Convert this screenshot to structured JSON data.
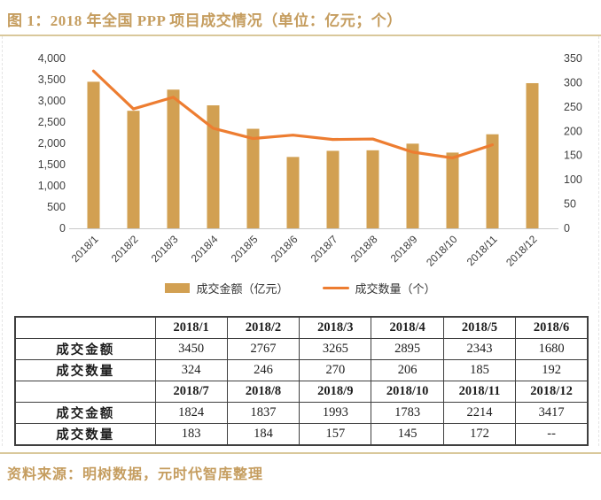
{
  "title": "图 1：2018 年全国 PPP 项目成交情况（单位：亿元；个）",
  "source": "资料来源：明树数据，元时代智库整理",
  "colors": {
    "bar": "#d2a052",
    "line": "#ed7d31",
    "gold_text": "#c59d5f",
    "gold_rule": "#d9c89b",
    "axis_text": "#3f3f3f"
  },
  "chart_data": {
    "type": "bar",
    "subtype": "combo-bar-line-dual-axis",
    "categories": [
      "2018/1",
      "2018/2",
      "2018/3",
      "2018/4",
      "2018/5",
      "2018/6",
      "2018/7",
      "2018/8",
      "2018/9",
      "2018/10",
      "2018/11",
      "2018/12"
    ],
    "series": [
      {
        "name": "成交金额",
        "legend_label": "成交金额（亿元）",
        "type": "bar",
        "axis": "left",
        "color": "#d2a052",
        "values": [
          3450,
          2767,
          3265,
          2895,
          2343,
          1680,
          1824,
          1837,
          1993,
          1783,
          2214,
          3417
        ]
      },
      {
        "name": "成交数量",
        "legend_label": "成交数量（个）",
        "type": "line",
        "axis": "right",
        "color": "#ed7d31",
        "values": [
          324,
          246,
          270,
          206,
          185,
          192,
          183,
          184,
          157,
          145,
          172,
          null
        ]
      }
    ],
    "left_axis": {
      "min": 0,
      "max": 4000,
      "step": 500
    },
    "right_axis": {
      "min": 0,
      "max": 350,
      "step": 50
    },
    "grid": false,
    "legend_position": "bottom",
    "x_label_rotation": -45
  },
  "table": {
    "rows": [
      {
        "cells": [
          "",
          "2018/1",
          "2018/2",
          "2018/3",
          "2018/4",
          "2018/5",
          "2018/6"
        ]
      },
      {
        "cells": [
          "成交金额",
          "3450",
          "2767",
          "3265",
          "2895",
          "2343",
          "1680"
        ]
      },
      {
        "cells": [
          "成交数量",
          "324",
          "246",
          "270",
          "206",
          "185",
          "192"
        ]
      },
      {
        "cells": [
          "",
          "2018/7",
          "2018/8",
          "2018/9",
          "2018/10",
          "2018/11",
          "2018/12"
        ]
      },
      {
        "cells": [
          "成交金额",
          "1824",
          "1837",
          "1993",
          "1783",
          "2214",
          "3417"
        ]
      },
      {
        "cells": [
          "成交数量",
          "183",
          "184",
          "157",
          "145",
          "172",
          "--"
        ]
      }
    ]
  }
}
